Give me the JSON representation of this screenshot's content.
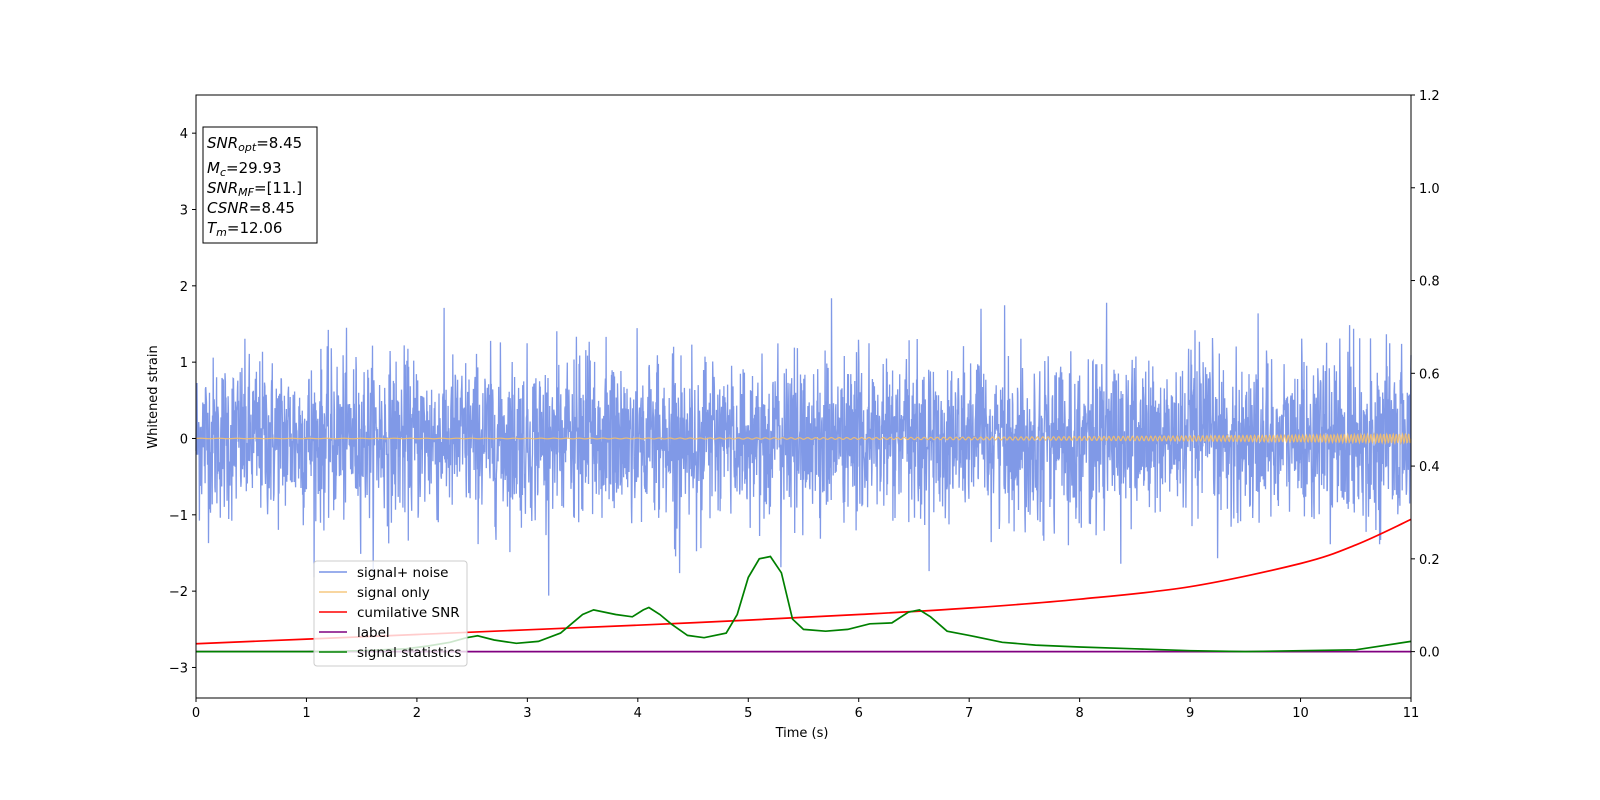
{
  "chart_data": {
    "type": "line",
    "xlabel": "Time (s)",
    "ylabel": "Whitened strain",
    "xlim": [
      0,
      11
    ],
    "ylim_left": [
      -3.4,
      4.5
    ],
    "ylim_right": [
      -0.1,
      1.2
    ],
    "x_ticks": [
      0,
      1,
      2,
      3,
      4,
      5,
      6,
      7,
      8,
      9,
      10,
      11
    ],
    "y_ticks_left": [
      -3,
      -2,
      -1,
      0,
      1,
      2,
      3,
      4
    ],
    "y_ticks_right": [
      0.0,
      0.2,
      0.4,
      0.6,
      0.8,
      1.0,
      1.2
    ],
    "info_box": {
      "snr_opt": {
        "symbol": "SNR",
        "sub": "opt",
        "value": "=8.45"
      },
      "mc": {
        "symbol": "M",
        "sub": "c",
        "value": "=29.93"
      },
      "snr_mf": {
        "symbol": "SNR",
        "sub": "MF",
        "value": "=[11.]"
      },
      "csnr": {
        "symbol": "CSNR",
        "sub": "",
        "value": "=8.45"
      },
      "tm": {
        "symbol": "T",
        "sub": "m",
        "value": "=12.06"
      }
    },
    "series": [
      {
        "name": "signal+ noise",
        "axis": "left",
        "color": "#7994e6",
        "description_stats": {
          "mean": 0,
          "typical_amplitude": 0.55,
          "max": 1.95,
          "min": -2.1
        }
      },
      {
        "name": "signal only",
        "axis": "left",
        "color": "#f5c06a",
        "chirp_amplitude_start": 0.003,
        "chirp_amplitude_end": 0.06
      },
      {
        "name": "cumilative SNR",
        "axis": "right",
        "color": "#ff0000",
        "x": [
          0,
          1,
          2,
          3,
          4,
          5,
          6,
          7,
          8,
          9,
          10,
          10.5,
          11
        ],
        "y": [
          0.017,
          0.027,
          0.037,
          0.047,
          0.057,
          0.068,
          0.08,
          0.094,
          0.113,
          0.14,
          0.19,
          0.23,
          0.285
        ]
      },
      {
        "name": "label",
        "axis": "right",
        "color": "#800080",
        "x": [
          0,
          11
        ],
        "y": [
          0.0,
          0.0
        ]
      },
      {
        "name": "signal statistics",
        "axis": "right",
        "color": "#008000",
        "x": [
          0,
          0.3,
          1.0,
          1.5,
          1.9,
          2.1,
          2.3,
          2.45,
          2.55,
          2.7,
          2.9,
          3.1,
          3.3,
          3.4,
          3.5,
          3.6,
          3.8,
          3.95,
          4.05,
          4.1,
          4.2,
          4.3,
          4.45,
          4.6,
          4.8,
          4.9,
          5.0,
          5.1,
          5.2,
          5.3,
          5.4,
          5.5,
          5.7,
          5.9,
          6.1,
          6.3,
          6.45,
          6.55,
          6.65,
          6.8,
          7.0,
          7.3,
          7.6,
          8.0,
          8.5,
          9.0,
          9.5,
          10.0,
          10.5,
          11.0
        ],
        "y": [
          0.0,
          0.0,
          0.0,
          0.002,
          0.006,
          0.012,
          0.02,
          0.03,
          0.034,
          0.025,
          0.018,
          0.022,
          0.04,
          0.06,
          0.08,
          0.09,
          0.08,
          0.075,
          0.09,
          0.095,
          0.08,
          0.06,
          0.035,
          0.03,
          0.04,
          0.08,
          0.16,
          0.2,
          0.205,
          0.17,
          0.07,
          0.048,
          0.044,
          0.048,
          0.06,
          0.062,
          0.085,
          0.09,
          0.075,
          0.044,
          0.035,
          0.02,
          0.014,
          0.01,
          0.006,
          0.002,
          0.0,
          0.002,
          0.004,
          0.022
        ]
      }
    ],
    "legend_position": "lower-left"
  }
}
